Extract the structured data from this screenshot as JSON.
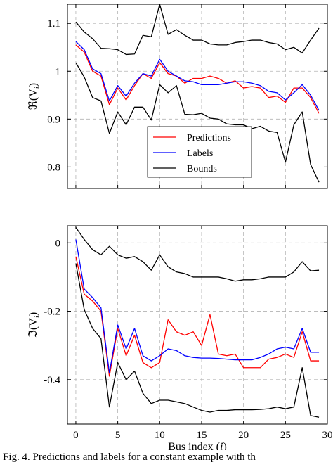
{
  "caption": "Fig. 4. Predictions and labels for a constant example with th",
  "legend_entries": [
    "Predictions",
    "Labels",
    "Bounds"
  ],
  "colors": {
    "predictions": "#ff0000",
    "labels": "#0000ff",
    "bounds": "#000000"
  },
  "chart_data": [
    {
      "type": "line",
      "ylabel": "ℜ(V",
      "ylabel_sub": "i",
      "xlim": [
        -1,
        30
      ],
      "ylim": [
        0.755,
        1.14
      ],
      "xticks": [
        0,
        5,
        10,
        15,
        20,
        25,
        30
      ],
      "yticks": [
        0.8,
        0.9,
        1,
        1.1
      ],
      "ytick_labels": [
        "0.8",
        "0.9",
        "1",
        "1.1"
      ],
      "grid": true,
      "legend_position": "center",
      "x": [
        0,
        1,
        2,
        3,
        4,
        5,
        6,
        7,
        8,
        9,
        10,
        11,
        12,
        13,
        14,
        15,
        16,
        17,
        18,
        19,
        20,
        21,
        22,
        23,
        24,
        25,
        26,
        27,
        28,
        29
      ],
      "series": [
        {
          "name": "Predictions",
          "values": [
            1.055,
            1.04,
            1.0,
            0.99,
            0.93,
            0.965,
            0.94,
            0.97,
            0.995,
            0.985,
            1.018,
            0.995,
            0.99,
            0.975,
            0.985,
            0.985,
            0.99,
            0.985,
            0.975,
            0.98,
            0.965,
            0.968,
            0.965,
            0.945,
            0.948,
            0.935,
            0.965,
            0.965,
            0.945,
            0.912
          ]
        },
        {
          "name": "Labels",
          "values": [
            1.062,
            1.045,
            1.005,
            0.995,
            0.938,
            0.97,
            0.948,
            0.975,
            0.995,
            0.99,
            1.025,
            1.0,
            0.99,
            0.98,
            0.978,
            0.972,
            0.972,
            0.972,
            0.975,
            0.978,
            0.978,
            0.975,
            0.97,
            0.958,
            0.955,
            0.94,
            0.955,
            0.972,
            0.95,
            0.918
          ]
        },
        {
          "name": "Bounds",
          "values": [
            1.103,
            1.082,
            1.068,
            1.048,
            1.047,
            1.045,
            1.035,
            1.036,
            1.075,
            1.072,
            1.14,
            1.077,
            1.087,
            1.075,
            1.065,
            1.065,
            1.057,
            1.055,
            1.055,
            1.06,
            1.062,
            1.065,
            1.065,
            1.06,
            1.057,
            1.045,
            1.05,
            1.038,
            1.065,
            1.09
          ]
        },
        {
          "name": "Bounds",
          "values": [
            1.018,
            0.988,
            0.945,
            0.938,
            0.87,
            0.915,
            0.888,
            0.925,
            0.925,
            0.898,
            0.972,
            0.955,
            0.97,
            0.91,
            0.909,
            0.912,
            0.902,
            0.9,
            0.89,
            0.888,
            0.888,
            0.88,
            0.885,
            0.875,
            0.872,
            0.81,
            0.888,
            0.915,
            0.805,
            0.768
          ]
        }
      ]
    },
    {
      "type": "line",
      "ylabel": "ℑ(V",
      "ylabel_sub": "i",
      "xlabel": "Bus index (",
      "xlabel_var": "i",
      "xlabel_end": ")",
      "xlim": [
        -1,
        30
      ],
      "ylim": [
        -0.53,
        0.05
      ],
      "xticks": [
        0,
        5,
        10,
        15,
        20,
        25,
        30
      ],
      "xtick_labels": [
        "0",
        "5",
        "10",
        "15",
        "20",
        "25",
        "30"
      ],
      "yticks": [
        -0.4,
        -0.2,
        0
      ],
      "ytick_labels": [
        "-0.4",
        "-0.2",
        "0"
      ],
      "grid": true,
      "x": [
        0,
        1,
        2,
        3,
        4,
        5,
        6,
        7,
        8,
        9,
        10,
        11,
        12,
        13,
        14,
        15,
        16,
        17,
        18,
        19,
        20,
        21,
        22,
        23,
        24,
        25,
        26,
        27,
        28,
        29
      ],
      "series": [
        {
          "name": "Predictions",
          "values": [
            -0.04,
            -0.15,
            -0.17,
            -0.2,
            -0.39,
            -0.25,
            -0.33,
            -0.27,
            -0.35,
            -0.365,
            -0.35,
            -0.225,
            -0.26,
            -0.27,
            -0.26,
            -0.3,
            -0.21,
            -0.325,
            -0.33,
            -0.325,
            -0.365,
            -0.365,
            -0.365,
            -0.34,
            -0.335,
            -0.325,
            -0.335,
            -0.26,
            -0.345,
            -0.345
          ]
        },
        {
          "name": "Labels",
          "values": [
            0.01,
            -0.135,
            -0.16,
            -0.19,
            -0.38,
            -0.24,
            -0.31,
            -0.25,
            -0.33,
            -0.345,
            -0.33,
            -0.31,
            -0.315,
            -0.33,
            -0.335,
            -0.337,
            -0.337,
            -0.338,
            -0.34,
            -0.342,
            -0.342,
            -0.342,
            -0.335,
            -0.325,
            -0.31,
            -0.305,
            -0.31,
            -0.25,
            -0.32,
            -0.32
          ]
        },
        {
          "name": "Bounds",
          "values": [
            0.045,
            0.01,
            -0.02,
            -0.035,
            -0.01,
            -0.035,
            -0.045,
            -0.04,
            -0.055,
            -0.08,
            -0.035,
            -0.07,
            -0.085,
            -0.09,
            -0.1,
            -0.1,
            -0.1,
            -0.1,
            -0.105,
            -0.112,
            -0.108,
            -0.108,
            -0.105,
            -0.1,
            -0.1,
            -0.1,
            -0.085,
            -0.055,
            -0.082,
            -0.08
          ]
        },
        {
          "name": "Bounds",
          "values": [
            -0.06,
            -0.195,
            -0.25,
            -0.28,
            -0.48,
            -0.35,
            -0.4,
            -0.375,
            -0.44,
            -0.47,
            -0.46,
            -0.46,
            -0.465,
            -0.47,
            -0.48,
            -0.49,
            -0.495,
            -0.49,
            -0.49,
            -0.488,
            -0.488,
            -0.488,
            -0.487,
            -0.485,
            -0.48,
            -0.485,
            -0.48,
            -0.365,
            -0.505,
            -0.51
          ]
        }
      ]
    }
  ]
}
